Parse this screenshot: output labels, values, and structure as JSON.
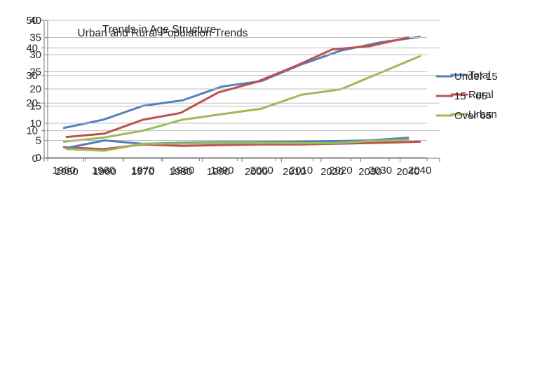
{
  "figure": {
    "background": "#ffffff",
    "text_color": "#262626",
    "axis_color": "#8c8c8c",
    "grid_color": "#bdbdbd"
  },
  "chart_data": [
    {
      "type": "line",
      "title": "Urban and Rural Population Trends",
      "xlabel": "",
      "ylabel": "",
      "ylim": [
        0,
        50
      ],
      "yticks": [
        0,
        10,
        20,
        30,
        40,
        50
      ],
      "grid": true,
      "legend_position": "right",
      "categories": [
        "1950",
        "1960",
        "1970",
        "1980",
        "1990",
        "2000",
        "2010",
        "2020",
        "2030",
        "2040"
      ],
      "series": [
        {
          "name": "Total",
          "color": "#4f81bd",
          "values": [
            11,
            14,
            19,
            21,
            26,
            28,
            34,
            39,
            42,
            44
          ]
        },
        {
          "name": "Rural",
          "color": "#c0504d",
          "values": [
            4,
            3.3,
            5,
            4.5,
            4.8,
            5,
            5,
            5.3,
            5.6,
            6
          ]
        },
        {
          "name": "Urban",
          "color": "#9bbb59",
          "values": [
            6,
            7.5,
            10,
            14,
            16,
            18,
            23,
            25,
            31,
            37
          ]
        }
      ]
    },
    {
      "type": "line",
      "title": "Trends in Age Structure",
      "xlabel": "",
      "ylabel": "",
      "ylim": [
        0,
        40
      ],
      "yticks": [
        0,
        5,
        10,
        15,
        20,
        25,
        30,
        35,
        40
      ],
      "grid": true,
      "legend_position": "right",
      "categories": [
        "1950",
        "1960",
        "1970",
        "1980",
        "1990",
        "2000",
        "2010",
        "2020",
        "2030",
        "2040"
      ],
      "series": [
        {
          "name": "Under 15",
          "color": "#4f81bd",
          "values": [
            2.8,
            5,
            4,
            4.3,
            4.5,
            4.5,
            4.6,
            4.8,
            5,
            5.8
          ]
        },
        {
          "name": "15 - 65",
          "color": "#c0504d",
          "values": [
            6,
            7,
            11,
            13,
            19,
            22,
            26.5,
            31.5,
            32.5,
            35
          ]
        },
        {
          "name": "Over 65",
          "color": "#9bbb59",
          "values": [
            2.5,
            2,
            4,
            4.1,
            4.2,
            4.2,
            4.2,
            4.2,
            4.8,
            5.2
          ]
        }
      ]
    }
  ]
}
